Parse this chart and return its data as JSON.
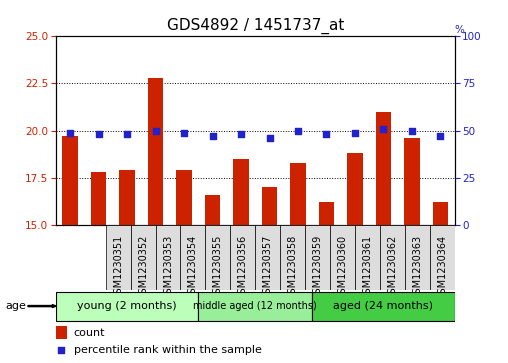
{
  "title": "GDS4892 / 1451737_at",
  "samples": [
    "GSM1230351",
    "GSM1230352",
    "GSM1230353",
    "GSM1230354",
    "GSM1230355",
    "GSM1230356",
    "GSM1230357",
    "GSM1230358",
    "GSM1230359",
    "GSM1230360",
    "GSM1230361",
    "GSM1230362",
    "GSM1230363",
    "GSM1230364"
  ],
  "counts": [
    19.7,
    17.8,
    17.9,
    22.8,
    17.9,
    16.6,
    18.5,
    17.0,
    18.3,
    16.2,
    18.8,
    21.0,
    19.6,
    16.2
  ],
  "percentiles": [
    49,
    48,
    48,
    50,
    49,
    47,
    48,
    46,
    50,
    48,
    49,
    51,
    50,
    47
  ],
  "count_color": "#cc2200",
  "percentile_color": "#2222cc",
  "ylim_left": [
    15,
    25
  ],
  "ylim_right": [
    0,
    100
  ],
  "yticks_left": [
    15,
    17.5,
    20,
    22.5,
    25
  ],
  "yticks_right": [
    0,
    25,
    50,
    75,
    100
  ],
  "groups": [
    {
      "label": "young (2 months)",
      "start": 0,
      "end": 5,
      "color": "#bbffbb"
    },
    {
      "label": "middle aged (12 months)",
      "start": 5,
      "end": 9,
      "color": "#99ee99"
    },
    {
      "label": "aged (24 months)",
      "start": 9,
      "end": 14,
      "color": "#44cc44"
    }
  ],
  "bar_width": 0.55,
  "background_color": "#ffffff",
  "plot_bg_color": "#ffffff",
  "grid_color": "#000000",
  "title_fontsize": 11,
  "tick_fontsize": 7.5,
  "sample_fontsize": 7,
  "label_fontsize": 8,
  "age_label": "age",
  "legend_count": "count",
  "legend_percentile": "percentile rank within the sample"
}
